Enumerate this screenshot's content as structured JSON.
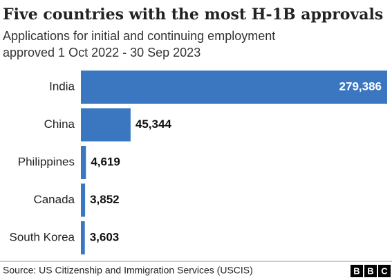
{
  "chart_data": {
    "type": "barh",
    "title": "Five countries with the most H-1B approvals",
    "subtitle": [
      "Applications for initial and continuing employment",
      "approved 1 Oct 2022 - 30 Sep 2023"
    ],
    "categories": [
      "India",
      "China",
      "Philippines",
      "Canada",
      "South Korea"
    ],
    "values": [
      279386,
      45344,
      4619,
      3852,
      3603
    ],
    "value_labels": [
      "279,386",
      "45,344",
      "4,619",
      "3,852",
      "3,603"
    ],
    "color": "#3b77c0",
    "source": "Source: US Citizenship and Immigration Services (USCIS)",
    "logo": [
      "B",
      "B",
      "C"
    ]
  }
}
